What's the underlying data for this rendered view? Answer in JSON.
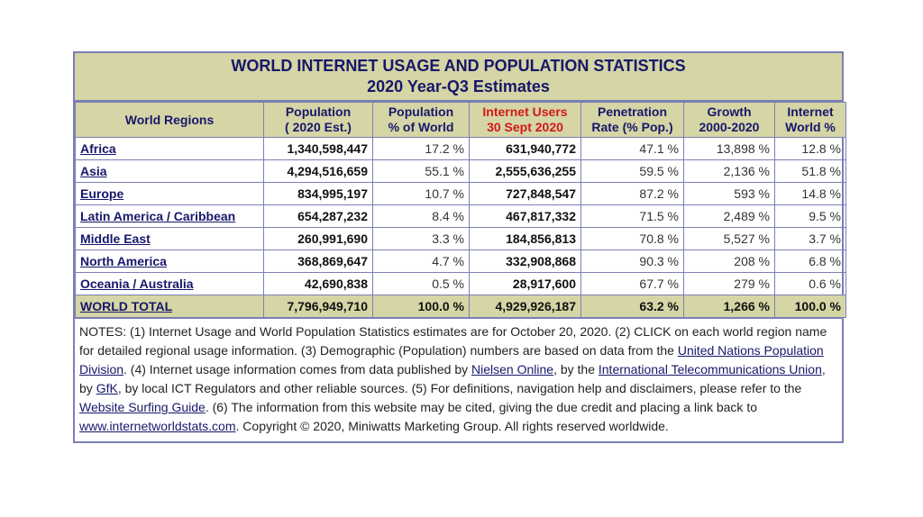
{
  "title": {
    "line1": "WORLD INTERNET USAGE AND POPULATION STATISTICS",
    "line2": "2020 Year-Q3 Estimates"
  },
  "headers": [
    {
      "l1": "World Regions",
      "l2": ""
    },
    {
      "l1": "Population",
      "l2": "( 2020 Est.)"
    },
    {
      "l1": "Population",
      "l2": "% of World"
    },
    {
      "l1": "Internet Users",
      "l2": "30 Sept 2020"
    },
    {
      "l1": "Penetration",
      "l2": "Rate (% Pop.)"
    },
    {
      "l1": "Growth",
      "l2": "2000-2020"
    },
    {
      "l1": "Internet",
      "l2": "World %"
    }
  ],
  "rows": [
    {
      "region": "Africa",
      "population": "1,340,598,447",
      "pop_pct": "17.2 %",
      "users": "631,940,772",
      "penetration": "47.1 %",
      "growth": "13,898 %",
      "world_pct": "12.8 %"
    },
    {
      "region": "Asia",
      "population": "4,294,516,659",
      "pop_pct": "55.1 %",
      "users": "2,555,636,255",
      "penetration": "59.5 %",
      "growth": "2,136 %",
      "world_pct": "51.8 %"
    },
    {
      "region": "Europe",
      "population": "834,995,197",
      "pop_pct": "10.7 %",
      "users": "727,848,547",
      "penetration": "87.2 %",
      "growth": "593 %",
      "world_pct": "14.8 %"
    },
    {
      "region": "Latin America / Caribbean",
      "population": "654,287,232",
      "pop_pct": "8.4 %",
      "users": "467,817,332",
      "penetration": "71.5 %",
      "growth": "2,489 %",
      "world_pct": "9.5 %"
    },
    {
      "region": "Middle East",
      "population": "260,991,690",
      "pop_pct": "3.3 %",
      "users": "184,856,813",
      "penetration": "70.8 %",
      "growth": "5,527 %",
      "world_pct": "3.7 %"
    },
    {
      "region": "North America",
      "population": "368,869,647",
      "pop_pct": "4.7 %",
      "users": "332,908,868",
      "penetration": "90.3 %",
      "growth": "208 %",
      "world_pct": "6.8 %"
    },
    {
      "region": "Oceania / Australia",
      "population": "42,690,838",
      "pop_pct": "0.5 %",
      "users": "28,917,600",
      "penetration": "67.7 %",
      "growth": "279 %",
      "world_pct": "0.6 %"
    }
  ],
  "total": {
    "region": "WORLD TOTAL",
    "population": "7,796,949,710",
    "pop_pct": "100.0 %",
    "users": "4,929,926,187",
    "penetration": "63.2 %",
    "growth": "1,266 %",
    "world_pct": "100.0 %"
  },
  "notes": {
    "t1": "NOTES: (1) Internet Usage and World Population Statistics estimates are for October 20, 2020. (2) CLICK on each world region name for detailed regional usage information. (3) Demographic (Population) numbers are based on data from the ",
    "link_un": "United Nations Population Division",
    "t2": ". (4) Internet usage information comes from data published by ",
    "link_nielsen": "Nielsen Online",
    "t3": ", by the ",
    "link_itu": "International Telecommunications Union",
    "t4": ", by ",
    "link_gfk": "GfK",
    "t5": ", by local ICT Regulators and other reliable sources. (5) For definitions, navigation help and disclaimers, please refer to the ",
    "link_guide": "Website Surfing Guide",
    "t6": ". (6) The information from this website may be cited, giving the due credit and placing a link back to ",
    "link_site": "www.internetworldstats.com",
    "t7": ". Copyright © 2020, Miniwatts Marketing Group. All rights reserved worldwide."
  },
  "colors": {
    "header_bg": "#d5d5a5",
    "border": "#7b7fb4",
    "title_text": "#17176b",
    "highlight_red": "#d21818"
  }
}
